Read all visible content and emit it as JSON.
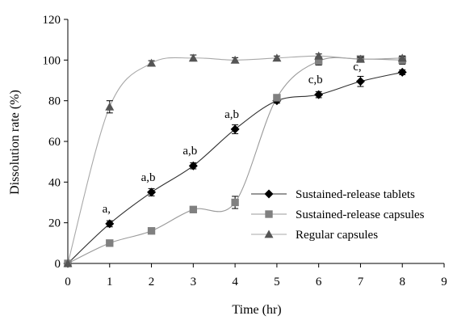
{
  "chart_data": {
    "type": "line",
    "xlabel": "Time (hr)",
    "ylabel": "Dissolution rate (%)",
    "xlim": [
      0,
      9
    ],
    "ylim": [
      0,
      120
    ],
    "xticks": [
      0,
      1,
      2,
      3,
      4,
      5,
      6,
      7,
      8,
      9
    ],
    "yticks": [
      0,
      20,
      40,
      60,
      80,
      100,
      120
    ],
    "grid": false,
    "legend_position": "right",
    "series": [
      {
        "name": "Sustained-release tablets",
        "marker": "diamond",
        "color": "#000000",
        "line_color": "#303030",
        "x": [
          0,
          1,
          2,
          3,
          4,
          5,
          6,
          7,
          8
        ],
        "y": [
          0,
          19.5,
          35,
          48,
          66,
          80,
          83,
          89.5,
          94
        ],
        "err": [
          0,
          1.5,
          1.8,
          1.5,
          2.2,
          1.2,
          1.5,
          2.5,
          1.2
        ]
      },
      {
        "name": "Sustained-release capsules",
        "marker": "square",
        "color": "#808080",
        "line_color": "#9a9a9a",
        "x": [
          0,
          1,
          2,
          3,
          4,
          5,
          6,
          7,
          8
        ],
        "y": [
          0,
          10,
          16,
          26.5,
          30,
          81.5,
          99.5,
          100.5,
          100
        ],
        "err": [
          0,
          1.2,
          1.2,
          1.0,
          3.0,
          1.5,
          2.0,
          1.5,
          2.0
        ]
      },
      {
        "name": "Regular capsules",
        "marker": "triangle",
        "color": "#555555",
        "line_color": "#a8a8a8",
        "x": [
          0,
          1,
          2,
          3,
          4,
          5,
          6,
          7,
          8
        ],
        "y": [
          0,
          77,
          98.5,
          101,
          100,
          101,
          102,
          100.5,
          101
        ],
        "err": [
          0,
          3.0,
          1.2,
          1.5,
          1.2,
          1.0,
          1.0,
          1.0,
          1.0
        ]
      }
    ],
    "annotations": [
      {
        "text": "a,",
        "x": 1,
        "y": 19.5
      },
      {
        "text": "a,b",
        "x": 2,
        "y": 35
      },
      {
        "text": "a,b",
        "x": 3,
        "y": 48
      },
      {
        "text": "a,b",
        "x": 4,
        "y": 66
      },
      {
        "text": "c,b",
        "x": 6,
        "y": 83
      },
      {
        "text": "c,",
        "x": 7,
        "y": 89.5
      }
    ]
  }
}
